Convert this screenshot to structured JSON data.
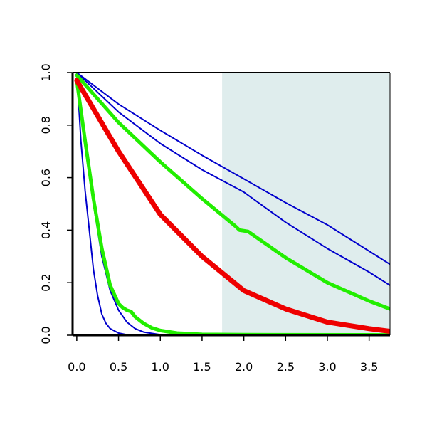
{
  "chart_data": {
    "type": "line",
    "title": "",
    "xlabel": "",
    "ylabel": "",
    "xlim": [
      -0.05,
      3.75
    ],
    "ylim": [
      0.0,
      1.0
    ],
    "x_ticks": [
      {
        "value": 0.0,
        "label": "0.0"
      },
      {
        "value": 0.5,
        "label": "0.5"
      },
      {
        "value": 1.0,
        "label": "1.0"
      },
      {
        "value": 1.5,
        "label": "1.5"
      },
      {
        "value": 2.0,
        "label": "2.0"
      },
      {
        "value": 2.5,
        "label": "2.5"
      },
      {
        "value": 3.0,
        "label": "3.0"
      },
      {
        "value": 3.5,
        "label": "3.5"
      }
    ],
    "y_ticks": [
      {
        "value": 0.0,
        "label": "0.0"
      },
      {
        "value": 0.2,
        "label": "0.2"
      },
      {
        "value": 0.4,
        "label": "0.4"
      },
      {
        "value": 0.6,
        "label": "0.6"
      },
      {
        "value": 0.8,
        "label": "0.8"
      },
      {
        "value": 1.0,
        "label": "1.0"
      }
    ],
    "grid": false,
    "legend": "none",
    "shaded_region": {
      "x_start": 1.74,
      "x_end": 3.75,
      "color": "#dfeded"
    },
    "series": [
      {
        "color": "#0000cc",
        "width": 2,
        "x": [
          0,
          0.05,
          0.1,
          0.15,
          0.2,
          0.25,
          0.3,
          0.35,
          0.4,
          0.5,
          0.6,
          0.75
        ],
        "y": [
          1.0,
          0.74,
          0.55,
          0.4,
          0.25,
          0.15,
          0.08,
          0.045,
          0.025,
          0.008,
          0.002,
          0.0
        ]
      },
      {
        "color": "#0000cc",
        "width": 2,
        "x": [
          0,
          0.05,
          0.1,
          0.15,
          0.2,
          0.3,
          0.4,
          0.5,
          0.6,
          0.7,
          0.8,
          1.0
        ],
        "y": [
          1.0,
          0.85,
          0.72,
          0.61,
          0.5,
          0.3,
          0.17,
          0.095,
          0.05,
          0.025,
          0.012,
          0.002
        ]
      },
      {
        "color": "#0000cc",
        "width": 2,
        "x": [
          0,
          0.5,
          1.0,
          1.5,
          2.0,
          2.5,
          3.0,
          3.5,
          3.75
        ],
        "y": [
          1.0,
          0.85,
          0.73,
          0.63,
          0.545,
          0.43,
          0.33,
          0.24,
          0.19
        ]
      },
      {
        "color": "#0000cc",
        "width": 2,
        "x": [
          0,
          0.5,
          1.0,
          1.5,
          2.0,
          2.5,
          3.0,
          3.5,
          3.75
        ],
        "y": [
          1.0,
          0.88,
          0.78,
          0.685,
          0.595,
          0.505,
          0.42,
          0.32,
          0.27
        ]
      },
      {
        "color": "#22ee00",
        "width": 5,
        "x": [
          0,
          0.1,
          0.2,
          0.3,
          0.4,
          0.5,
          0.55,
          0.6,
          0.65,
          0.7,
          0.8,
          0.9,
          1.0,
          1.2,
          1.5,
          2.0,
          3.75
        ],
        "y": [
          0.97,
          0.74,
          0.52,
          0.33,
          0.19,
          0.12,
          0.105,
          0.095,
          0.09,
          0.07,
          0.045,
          0.028,
          0.018,
          0.008,
          0.003,
          0.002,
          0.001
        ]
      },
      {
        "color": "#22ee00",
        "width": 5,
        "x": [
          0,
          0.5,
          1.0,
          1.5,
          1.9,
          1.95,
          2.05,
          2.5,
          3.0,
          3.5,
          3.75
        ],
        "y": [
          0.99,
          0.81,
          0.66,
          0.52,
          0.415,
          0.4,
          0.395,
          0.295,
          0.2,
          0.13,
          0.1
        ]
      },
      {
        "color": "#ee0000",
        "width": 7,
        "x": [
          0,
          0.5,
          1.0,
          1.5,
          2.0,
          2.5,
          3.0,
          3.5,
          3.75
        ],
        "y": [
          0.97,
          0.7,
          0.46,
          0.3,
          0.17,
          0.1,
          0.05,
          0.025,
          0.015
        ]
      }
    ]
  }
}
